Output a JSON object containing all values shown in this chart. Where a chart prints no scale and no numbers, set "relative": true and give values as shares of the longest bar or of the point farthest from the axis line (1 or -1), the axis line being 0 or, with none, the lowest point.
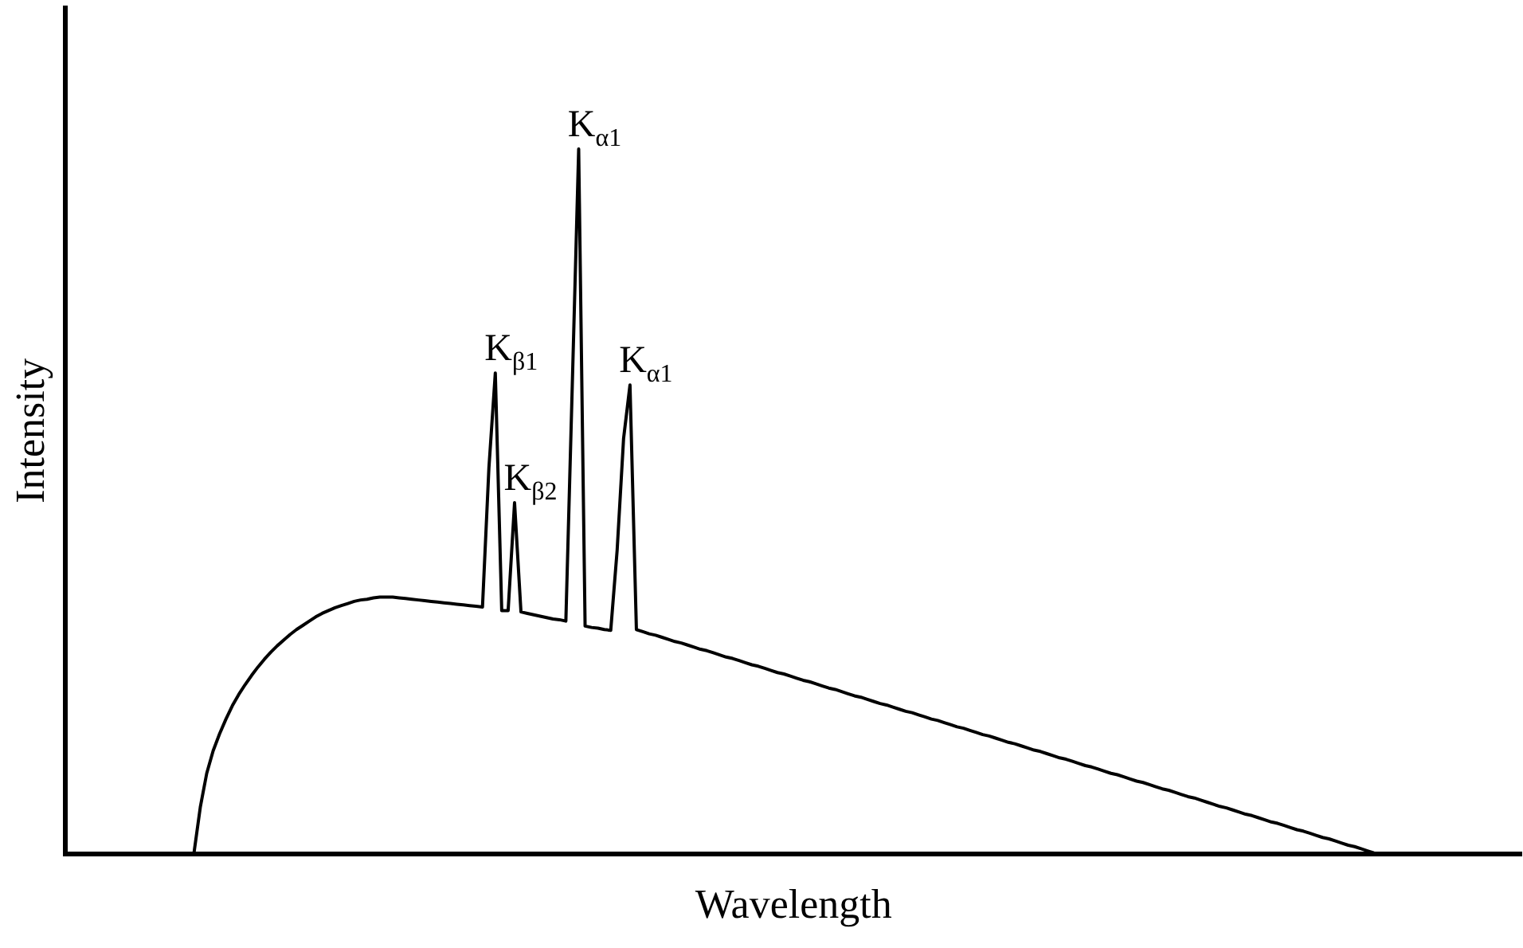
{
  "chart_data": {
    "type": "line",
    "relative": true,
    "xlabel": "Wavelength",
    "ylabel": "Intensity",
    "marker": "none",
    "categories": [
      null,
      null,
      null,
      null,
      null,
      null,
      null,
      null,
      null,
      null,
      null,
      null,
      null,
      null,
      null,
      null,
      null,
      null,
      null,
      null,
      null,
      null,
      null,
      null,
      null,
      null,
      null,
      null,
      null,
      null,
      null,
      null,
      null,
      null,
      null,
      null,
      null,
      null,
      null,
      null,
      null,
      null,
      null,
      null,
      null,
      null,
      null,
      null,
      null,
      null,
      null,
      null,
      null,
      null,
      null,
      null,
      null,
      null,
      null,
      null,
      null,
      null,
      null,
      null,
      null,
      null,
      null,
      null,
      null,
      null,
      null,
      null,
      null,
      null,
      null,
      null,
      null,
      null,
      null,
      null,
      null,
      null,
      null,
      null,
      null,
      null,
      null,
      null,
      null,
      null,
      null,
      null,
      null,
      null,
      null,
      null,
      null,
      null,
      null,
      null,
      null,
      null,
      null,
      null,
      null,
      null,
      null,
      null,
      null,
      null,
      null,
      null,
      null,
      null,
      null,
      null,
      null,
      null,
      null,
      null,
      null,
      null,
      null,
      null,
      null,
      null,
      null,
      null,
      null,
      null,
      null,
      null,
      null,
      null,
      null,
      null,
      null,
      null,
      null,
      null,
      null,
      null,
      null,
      null,
      null,
      null,
      null,
      null,
      null,
      null,
      null,
      null,
      null,
      null,
      null,
      null,
      null,
      null,
      null,
      null,
      null,
      null,
      null,
      null,
      null,
      null,
      null,
      null,
      null,
      null,
      null,
      null,
      null,
      null,
      null,
      null,
      null,
      null,
      null,
      null,
      null,
      null,
      null,
      null,
      null,
      null,
      null,
      null,
      null,
      null,
      null,
      null,
      null,
      null,
      null,
      null,
      null,
      null,
      null,
      null,
      null,
      null,
      null,
      null,
      null,
      null,
      null,
      null,
      null,
      null,
      null,
      null,
      null,
      null,
      null,
      null,
      null,
      null,
      null,
      null,
      null,
      null,
      null,
      null,
      null,
      null,
      null,
      null
    ],
    "series": [
      {
        "color": "#000000",
        "values": [
          null,
          null,
          null,
          null,
          null,
          null,
          null,
          null,
          null,
          null,
          null,
          null,
          null,
          null,
          null,
          null,
          null,
          null,
          null,
          null,
          0,
          0.066,
          0.114,
          0.146,
          0.17,
          0.191,
          0.21,
          0.226,
          0.24,
          0.253,
          0.265,
          0.276,
          0.286,
          0.295,
          0.303,
          0.311,
          0.318,
          0.324,
          0.33,
          0.336,
          0.341,
          0.345,
          0.349,
          0.352,
          0.355,
          0.358,
          0.36,
          0.361,
          0.363,
          0.364,
          0.364,
          0.364,
          0.363,
          0.362,
          0.361,
          0.36,
          0.359,
          0.358,
          0.357,
          0.356,
          0.355,
          0.354,
          0.353,
          0.352,
          0.351,
          0.35,
          0.547,
          0.682,
          0.345,
          0.345,
          0.498,
          0.343,
          0.341,
          0.339,
          0.337,
          0.335,
          0.333,
          0.332,
          0.33,
          0.664,
          1,
          0.323,
          0.321,
          0.32,
          0.318,
          0.317,
          0.431,
          0.589,
          0.665,
          0.318,
          0.315,
          0.312,
          0.31,
          0.307,
          0.304,
          0.301,
          0.299,
          0.296,
          0.293,
          0.29,
          0.288,
          0.285,
          0.282,
          0.279,
          0.277,
          0.274,
          0.271,
          0.268,
          0.266,
          0.263,
          0.26,
          0.257,
          0.255,
          0.252,
          0.249,
          0.246,
          0.244,
          0.241,
          0.238,
          0.235,
          0.233,
          0.23,
          0.227,
          0.224,
          0.222,
          0.219,
          0.216,
          0.213,
          0.211,
          0.208,
          0.205,
          0.202,
          0.2,
          0.197,
          0.194,
          0.191,
          0.189,
          0.186,
          0.183,
          0.18,
          0.178,
          0.175,
          0.172,
          0.169,
          0.167,
          0.164,
          0.161,
          0.158,
          0.156,
          0.153,
          0.15,
          0.147,
          0.145,
          0.142,
          0.139,
          0.136,
          0.134,
          0.131,
          0.128,
          0.125,
          0.123,
          0.12,
          0.117,
          0.114,
          0.112,
          0.109,
          0.106,
          0.103,
          0.101,
          0.098,
          0.095,
          0.092,
          0.09,
          0.087,
          0.084,
          0.081,
          0.079,
          0.076,
          0.073,
          0.07,
          0.067,
          0.065,
          0.062,
          0.059,
          0.056,
          0.054,
          0.051,
          0.048,
          0.045,
          0.043,
          0.04,
          0.037,
          0.034,
          0.032,
          0.029,
          0.026,
          0.023,
          0.021,
          0.018,
          0.015,
          0.012,
          0.01,
          0.007,
          0.004,
          0.001,
          0,
          null,
          null,
          null,
          null,
          null,
          null,
          null,
          null,
          null,
          null,
          null,
          null,
          null,
          null,
          null,
          null,
          null,
          null,
          null,
          null,
          null,
          null
        ]
      }
    ],
    "annotations": [
      "K$_{β1}$",
      "K$_{β2}$",
      "K$_{α1}$",
      "K$_{α1}$"
    ]
  }
}
